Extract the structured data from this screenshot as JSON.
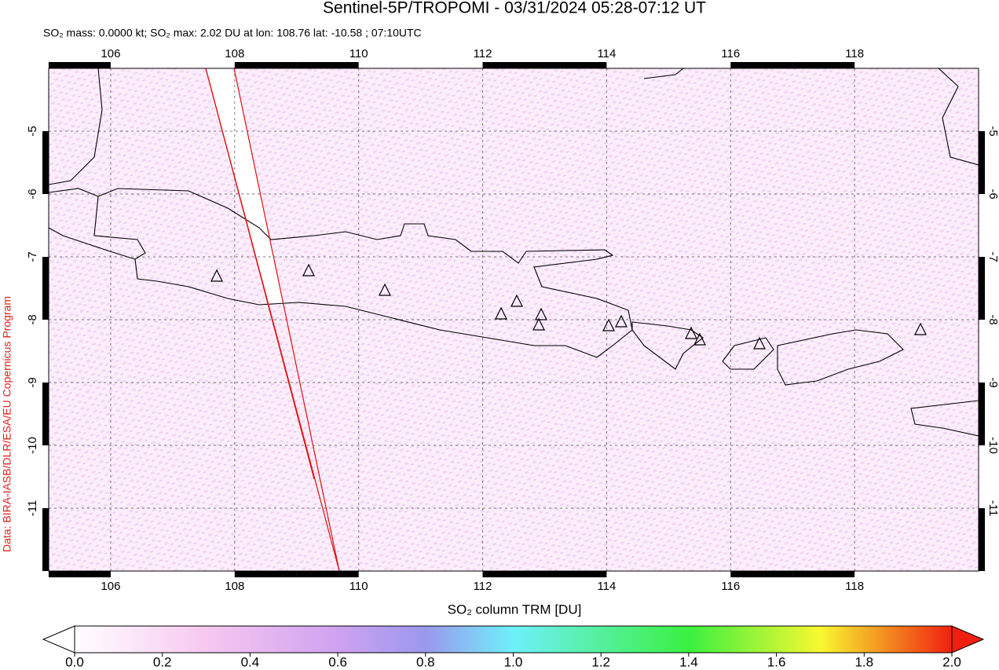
{
  "chart_data": {
    "type": "map",
    "title": "Sentinel-5P/TROPOMI - 03/31/2024 05:28-07:12 UT",
    "subtitle": "SO₂ mass: 0.0000 kt; SO₂ max: 2.02 DU at lon: 108.76 lat: -10.58 ; 07:10UTC",
    "credit": "Data: BIRA-IASB/DLR/ESA/EU Copernicus Program",
    "xlim": [
      105,
      120
    ],
    "xticks": [
      106,
      108,
      110,
      112,
      114,
      116,
      118
    ],
    "ylim": [
      -12,
      -4
    ],
    "yticks": [
      -5,
      -6,
      -7,
      -8,
      -9,
      -10,
      -11
    ],
    "grid": true,
    "colorbar": {
      "label": "SO₂ column TRM [DU]",
      "lim": [
        0,
        2
      ],
      "ticks": [
        {
          "value": 0,
          "label": "0.0"
        },
        {
          "value": 0.2,
          "label": "0.2"
        },
        {
          "value": 0.4,
          "label": "0.4"
        },
        {
          "value": 0.6,
          "label": "0.6"
        },
        {
          "value": 0.8,
          "label": "0.8"
        },
        {
          "value": 1,
          "label": "1.0"
        },
        {
          "value": 1.2,
          "label": "1.2"
        },
        {
          "value": 1.4,
          "label": "1.4"
        },
        {
          "value": 1.6,
          "label": "1.6"
        },
        {
          "value": 1.8,
          "label": "1.8"
        },
        {
          "value": 2,
          "label": "2.0"
        }
      ]
    }
  }
}
